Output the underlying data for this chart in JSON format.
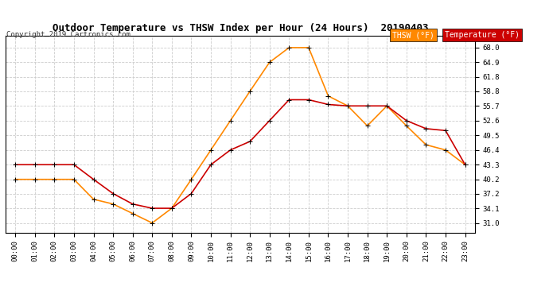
{
  "title": "Outdoor Temperature vs THSW Index per Hour (24 Hours)  20190403",
  "copyright": "Copyright 2019 Cartronics.com",
  "background_color": "#ffffff",
  "grid_color": "#cccccc",
  "hours": [
    "00:00",
    "01:00",
    "02:00",
    "03:00",
    "04:00",
    "05:00",
    "06:00",
    "07:00",
    "08:00",
    "09:00",
    "10:00",
    "11:00",
    "12:00",
    "13:00",
    "14:00",
    "15:00",
    "16:00",
    "17:00",
    "18:00",
    "19:00",
    "20:00",
    "21:00",
    "22:00",
    "23:00"
  ],
  "temperature": [
    43.3,
    43.3,
    43.3,
    43.3,
    40.2,
    37.2,
    35.0,
    34.1,
    34.1,
    37.2,
    43.3,
    46.4,
    48.2,
    52.6,
    57.0,
    57.0,
    56.0,
    55.7,
    55.7,
    55.7,
    52.6,
    50.9,
    50.5,
    43.3
  ],
  "thsw": [
    40.2,
    40.2,
    40.2,
    40.2,
    36.0,
    35.0,
    33.0,
    31.0,
    34.1,
    40.2,
    46.4,
    52.6,
    58.8,
    64.9,
    68.0,
    68.0,
    57.8,
    55.7,
    51.5,
    55.7,
    51.5,
    47.5,
    46.4,
    43.3
  ],
  "temp_color": "#cc0000",
  "thsw_color": "#ff8800",
  "marker": "+",
  "markersize": 5,
  "linewidth": 1.2,
  "ylim_min": 29.0,
  "ylim_max": 70.5,
  "yticks": [
    31.0,
    34.1,
    37.2,
    40.2,
    43.3,
    46.4,
    49.5,
    52.6,
    55.7,
    58.8,
    61.8,
    64.9,
    68.0
  ],
  "legend_thsw_label": "THSW (°F)",
  "legend_temp_label": "Temperature (°F)",
  "legend_thsw_bg": "#ff8800",
  "legend_temp_bg": "#cc0000",
  "legend_text_color": "#ffffff"
}
